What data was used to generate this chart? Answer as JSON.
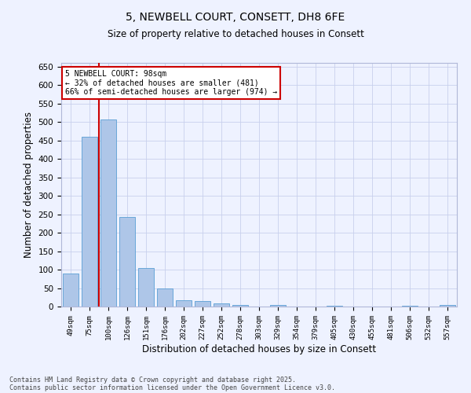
{
  "title1": "5, NEWBELL COURT, CONSETT, DH8 6FE",
  "title2": "Size of property relative to detached houses in Consett",
  "xlabel": "Distribution of detached houses by size in Consett",
  "ylabel": "Number of detached properties",
  "categories": [
    "49sqm",
    "75sqm",
    "100sqm",
    "126sqm",
    "151sqm",
    "176sqm",
    "202sqm",
    "227sqm",
    "252sqm",
    "278sqm",
    "303sqm",
    "329sqm",
    "354sqm",
    "379sqm",
    "405sqm",
    "430sqm",
    "455sqm",
    "481sqm",
    "506sqm",
    "532sqm",
    "557sqm"
  ],
  "values": [
    90,
    460,
    507,
    242,
    104,
    48,
    18,
    14,
    9,
    4,
    0,
    4,
    0,
    0,
    3,
    0,
    0,
    0,
    3,
    0,
    4
  ],
  "bar_color": "#aec6e8",
  "bar_edge_color": "#5a9fd4",
  "annotation_line1": "5 NEWBELL COURT: 98sqm",
  "annotation_line2": "← 32% of detached houses are smaller (481)",
  "annotation_line3": "66% of semi-detached houses are larger (974) →",
  "annotation_box_color": "#ffffff",
  "annotation_box_edge_color": "#cc0000",
  "red_line_color": "#cc0000",
  "footer1": "Contains HM Land Registry data © Crown copyright and database right 2025.",
  "footer2": "Contains public sector information licensed under the Open Government Licence v3.0.",
  "bg_color": "#eef2ff",
  "plot_bg_color": "#eef2ff",
  "grid_color": "#c8d0ec",
  "ylim": [
    0,
    660
  ],
  "yticks": [
    0,
    50,
    100,
    150,
    200,
    250,
    300,
    350,
    400,
    450,
    500,
    550,
    600,
    650
  ]
}
